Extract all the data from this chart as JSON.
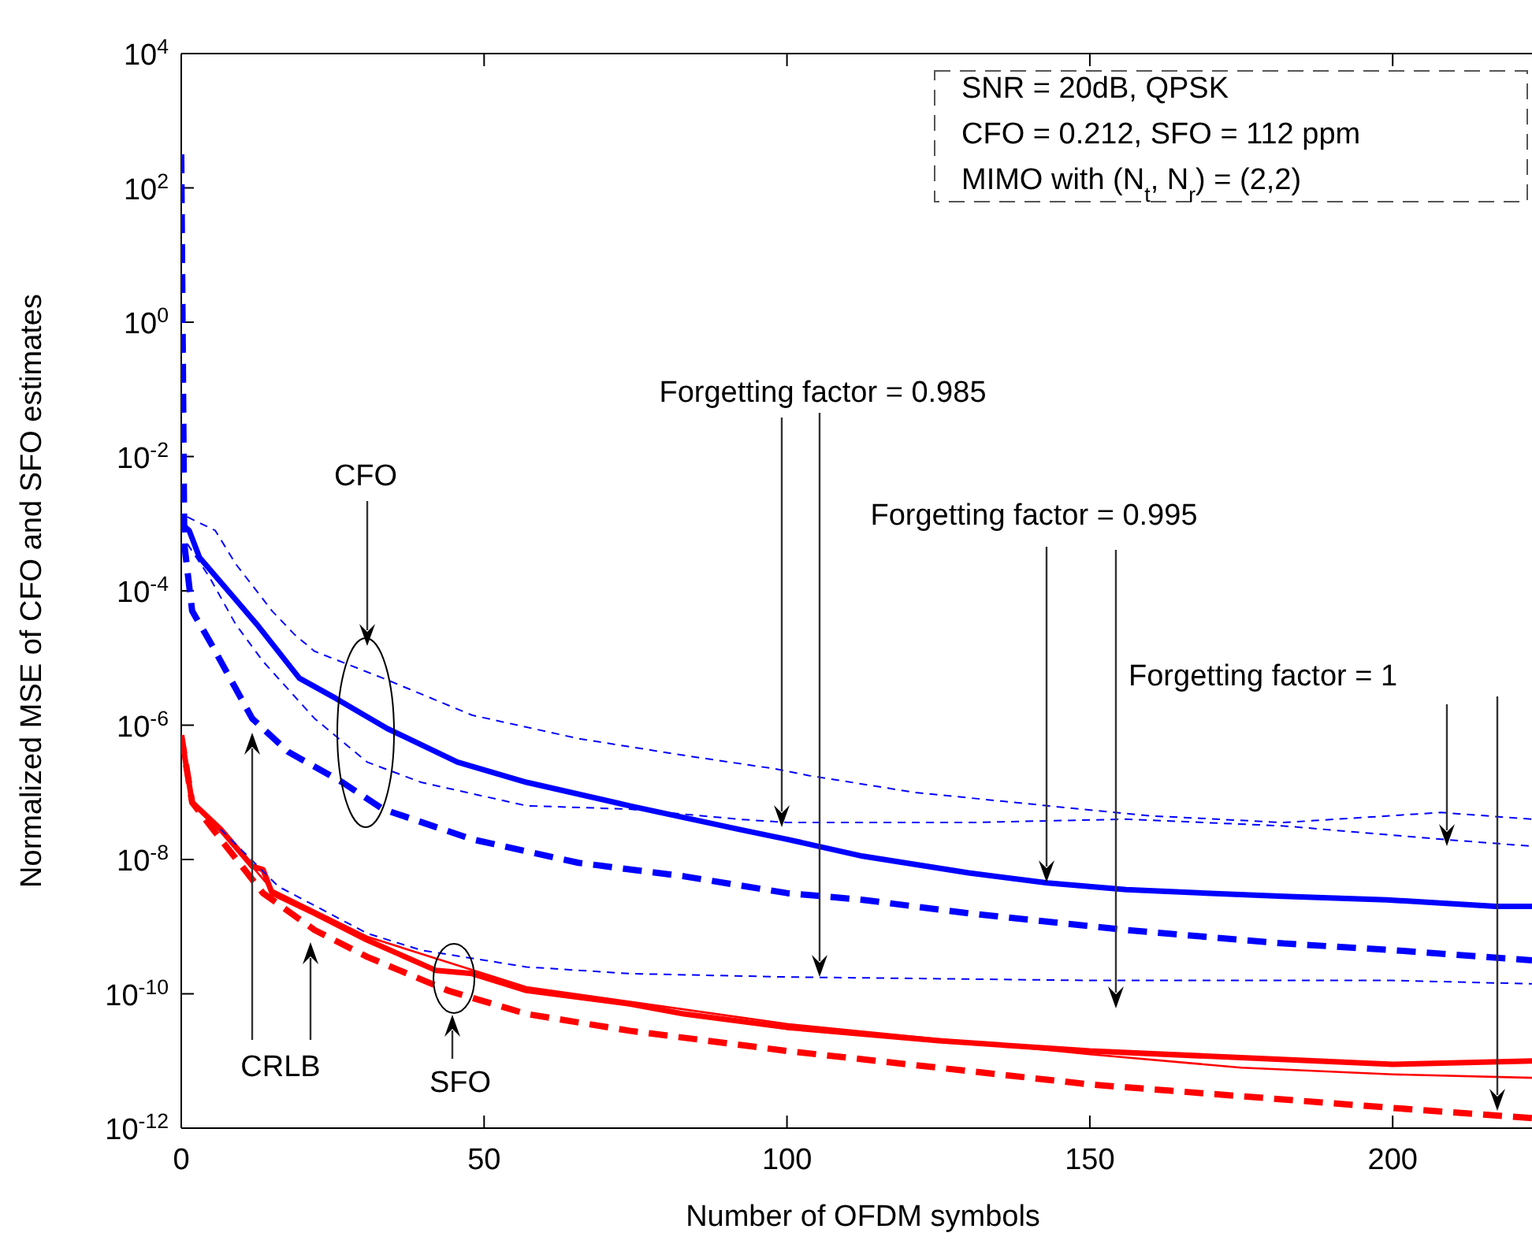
{
  "chart_data": {
    "type": "line",
    "xlabel": "Number of OFDM symbols",
    "ylabel": "Normalized MSE of CFO and SFO estimates",
    "xlim": [
      0,
      223
    ],
    "xticks": [
      0,
      50,
      100,
      150,
      200
    ],
    "ylim": [
      1e-12,
      10000
    ],
    "log": true,
    "yticks": [
      {
        "value": 1e-12,
        "label": "10$^{-12}$"
      },
      {
        "value": 1e-10,
        "label": "10$^{-10}$"
      },
      {
        "value": 1e-08,
        "label": "10$^{-8}$"
      },
      {
        "value": 1e-06,
        "label": "10$^{-6}$"
      },
      {
        "value": 0.0001,
        "label": "10$^{-4}$"
      },
      {
        "value": 0.01,
        "label": "10$^{-2}$"
      },
      {
        "value": 1,
        "label": "10$^{0}$"
      },
      {
        "value": 100,
        "label": "10$^{2}$"
      },
      {
        "value": 10000,
        "label": "10$^{4}$"
      }
    ],
    "series": [
      {
        "color": "#0000ff",
        "line_style": "solid",
        "x": [
          0,
          1.3,
          3,
          12.5,
          19.5,
          25.5,
          34,
          45.6,
          57,
          74,
          92,
          100,
          112.5,
          130,
          143,
          156,
          182,
          199,
          217,
          223
        ],
        "values": [
          0.001,
          0.000794,
          0.000316,
          3.16e-05,
          5.01e-06,
          2.51e-06,
          8.91e-07,
          2.82e-07,
          1.41e-07,
          6.31e-08,
          2.82e-08,
          2e-08,
          1.12e-08,
          6.31e-09,
          4.47e-09,
          3.55e-09,
          2.82e-09,
          2.51e-09,
          2e-09,
          2e-09
        ]
      },
      {
        "color": "#0000ff",
        "line_style": "dashed",
        "x": [
          0,
          0.5,
          1.8,
          4.7,
          11.7,
          17.7,
          26.6,
          33.3,
          48,
          65.6,
          83,
          100,
          112.5,
          130,
          156,
          182,
          200,
          223
        ],
        "values": [
          316,
          0.000501,
          5.01e-05,
          1.78e-05,
          1.26e-06,
          3.98e-07,
          1.41e-07,
          5.62e-08,
          2e-08,
          8.91e-09,
          5.62e-09,
          3.16e-09,
          2.51e-09,
          1.58e-09,
          8.91e-10,
          5.62e-10,
          4.47e-10,
          3.16e-10
        ]
      },
      {
        "color": "#0000ff",
        "line_style": "dashed",
        "x": [
          1,
          5.6,
          9,
          15,
          18.7,
          22,
          33.3,
          48,
          65.6,
          83,
          98,
          103.6,
          121,
          143,
          160,
          182,
          208,
          223
        ],
        "values": [
          0.00126,
          0.000794,
          0.000251,
          5.01e-05,
          2.24e-05,
          1.26e-05,
          5.01e-06,
          1.41e-06,
          6.31e-07,
          3.55e-07,
          2.24e-07,
          1.78e-07,
          1e-07,
          6.31e-08,
          4.47e-08,
          3.55e-08,
          5.01e-08,
          3.98e-08
        ]
      },
      {
        "color": "#0000ff",
        "line_style": "dashed",
        "x": [
          1,
          4.7,
          9,
          13.5,
          22,
          30.7,
          39.6,
          57,
          74,
          92,
          100,
          130,
          156,
          182,
          208,
          223
        ],
        "values": [
          0.000501,
          0.000158,
          3.16e-05,
          8.91e-06,
          1.26e-06,
          2.82e-07,
          1.41e-07,
          6.31e-08,
          5.62e-08,
          3.98e-08,
          3.55e-08,
          3.55e-08,
          3.98e-08,
          3.16e-08,
          2e-08,
          1.58e-08
        ]
      },
      {
        "color": "#ff0000",
        "line_style": "solid",
        "x": [
          0,
          1.8,
          6.5,
          11.7,
          13.5,
          15,
          22,
          30.7,
          42,
          48,
          57,
          74,
          83,
          100,
          125,
          150,
          175,
          200,
          223
        ],
        "values": [
          7.08e-07,
          7.08e-08,
          2.82e-08,
          7.94e-09,
          7.08e-09,
          3.16e-09,
          1.58e-09,
          6.31e-10,
          2.24e-10,
          2e-10,
          1.12e-10,
          7.08e-11,
          5.01e-11,
          3.16e-11,
          2e-11,
          1.41e-11,
          1.12e-11,
          8.91e-12,
          1e-11
        ]
      },
      {
        "color": "#ff0000",
        "line_style": "dashed",
        "x": [
          0,
          1.8,
          6.5,
          13.5,
          22,
          30.7,
          44,
          57,
          74,
          100,
          150,
          200,
          223
        ],
        "values": [
          7.08e-07,
          7.08e-08,
          2e-08,
          3.16e-09,
          8.91e-10,
          3.55e-10,
          1.12e-10,
          5.01e-11,
          2.82e-11,
          1.41e-11,
          4.47e-12,
          2e-12,
          1.41e-12
        ]
      },
      {
        "color": "#0000ff",
        "line_style": "dashed",
        "x": [
          6.5,
          16,
          30.7,
          39.6,
          57,
          74,
          100,
          150,
          200,
          223
        ],
        "values": [
          2.82e-08,
          3.98e-09,
          7.94e-10,
          4.47e-10,
          2.51e-10,
          2e-10,
          1.78e-10,
          1.58e-10,
          1.58e-10,
          1.41e-10
        ]
      },
      {
        "color": "#ff0000",
        "line_style": "solid",
        "x": [
          0,
          1.8,
          6.5,
          15,
          30.7,
          57,
          100,
          150,
          175,
          200,
          223
        ],
        "values": [
          7.08e-07,
          7.08e-08,
          2.82e-08,
          3.55e-09,
          7.08e-10,
          1.26e-10,
          3.55e-11,
          1.26e-11,
          7.94e-12,
          6.31e-12,
          5.62e-12
        ]
      }
    ],
    "annotations": [
      "SNR = 20dB, QPSK",
      "CFO = 0.212, SFO = 112 ppm",
      "MIMO with (N$_{t}$, N$_{r}$) = (2,2)",
      "CFO",
      "SFO",
      "CRLB",
      "Forgetting factor = 0.985",
      "Forgetting factor = 0.995",
      "Forgetting factor = 1"
    ]
  }
}
